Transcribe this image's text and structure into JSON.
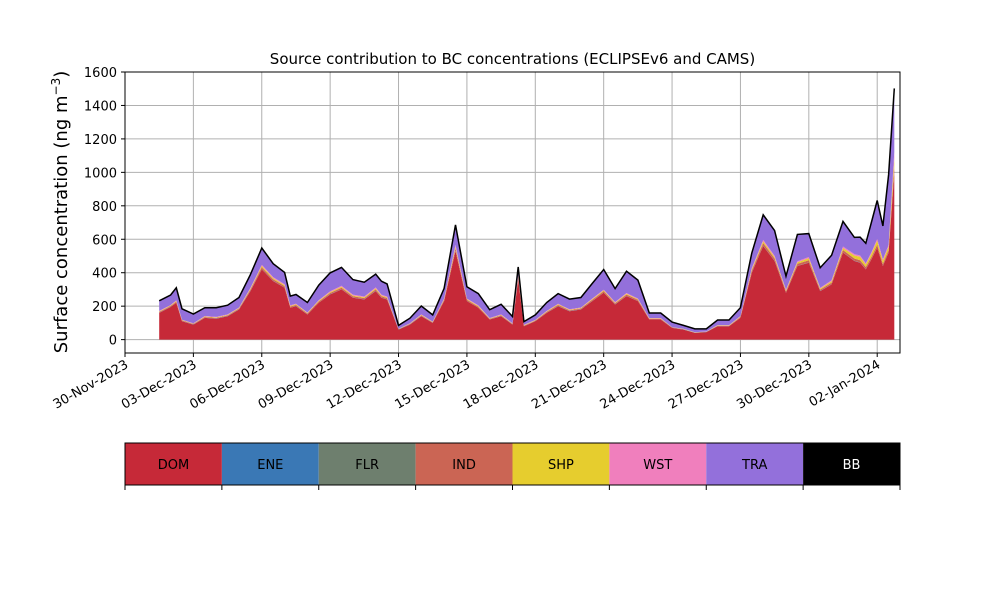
{
  "chart_data": {
    "type": "area",
    "stacked": true,
    "title": "Source contribution to BC concentrations (ECLIPSEv6 and CAMS)",
    "ylabel": "Surface concentration (ng m",
    "ylabel_exp": "−3",
    "ylabel_close": ")",
    "ylim": [
      -80,
      1600
    ],
    "xlim": [
      "2023-11-30",
      "2024-01-03"
    ],
    "grid": true,
    "y_ticks": [
      0,
      200,
      400,
      600,
      800,
      1000,
      1200,
      1400,
      1600
    ],
    "y_tick_labels": [
      "0",
      "200",
      "400",
      "600",
      "800",
      "1000",
      "1200",
      "1400",
      "1600"
    ],
    "x_ticks": [
      "2023-11-30",
      "2023-12-03",
      "2023-12-06",
      "2023-12-09",
      "2023-12-12",
      "2023-12-15",
      "2023-12-18",
      "2023-12-21",
      "2023-12-24",
      "2023-12-27",
      "2023-12-30",
      "2024-01-02"
    ],
    "x_tick_labels": [
      "30-Nov-2023",
      "03-Dec-2023",
      "06-Dec-2023",
      "09-Dec-2023",
      "12-Dec-2023",
      "15-Dec-2023",
      "18-Dec-2023",
      "21-Dec-2023",
      "24-Dec-2023",
      "27-Dec-2023",
      "30-Dec-2023",
      "02-Jan-2024"
    ],
    "x": [
      "2023-12-01 12:00",
      "2023-12-02 00:00",
      "2023-12-02 06:00",
      "2023-12-02 12:00",
      "2023-12-03 00:00",
      "2023-12-03 12:00",
      "2023-12-04 00:00",
      "2023-12-04 12:00",
      "2023-12-05 00:00",
      "2023-12-05 12:00",
      "2023-12-06 00:00",
      "2023-12-06 12:00",
      "2023-12-07 00:00",
      "2023-12-07 06:00",
      "2023-12-07 12:00",
      "2023-12-08 00:00",
      "2023-12-08 12:00",
      "2023-12-09 00:00",
      "2023-12-09 12:00",
      "2023-12-10 00:00",
      "2023-12-10 12:00",
      "2023-12-11 00:00",
      "2023-12-11 06:00",
      "2023-12-11 12:00",
      "2023-12-12 00:00",
      "2023-12-12 12:00",
      "2023-12-13 00:00",
      "2023-12-13 12:00",
      "2023-12-14 00:00",
      "2023-12-14 12:00",
      "2023-12-15 00:00",
      "2023-12-15 12:00",
      "2023-12-16 00:00",
      "2023-12-16 12:00",
      "2023-12-17 00:00",
      "2023-12-17 06:00",
      "2023-12-17 12:00",
      "2023-12-18 00:00",
      "2023-12-18 12:00",
      "2023-12-19 00:00",
      "2023-12-19 12:00",
      "2023-12-20 00:00",
      "2023-12-20 12:00",
      "2023-12-21 00:00",
      "2023-12-21 12:00",
      "2023-12-22 00:00",
      "2023-12-22 12:00",
      "2023-12-23 00:00",
      "2023-12-23 12:00",
      "2023-12-24 00:00",
      "2023-12-24 12:00",
      "2023-12-25 00:00",
      "2023-12-25 12:00",
      "2023-12-26 00:00",
      "2023-12-26 12:00",
      "2023-12-27 00:00",
      "2023-12-27 12:00",
      "2023-12-28 00:00",
      "2023-12-28 12:00",
      "2023-12-29 00:00",
      "2023-12-29 12:00",
      "2023-12-30 00:00",
      "2023-12-30 12:00",
      "2023-12-31 00:00",
      "2023-12-31 12:00",
      "2024-01-01 00:00",
      "2024-01-01 06:00",
      "2024-01-01 12:00",
      "2024-01-01 18:00",
      "2024-01-02 00:00",
      "2024-01-02 06:00",
      "2024-01-02 12:00",
      "2024-01-02 18:00"
    ],
    "series": [
      {
        "name": "DOM",
        "color": "#c62938",
        "values": [
          160,
          195,
          220,
          110,
          90,
          130,
          125,
          140,
          180,
          290,
          420,
          350,
          310,
          190,
          200,
          150,
          220,
          270,
          300,
          250,
          240,
          290,
          250,
          240,
          60,
          90,
          140,
          100,
          230,
          530,
          230,
          190,
          120,
          140,
          90,
          360,
          80,
          110,
          160,
          200,
          170,
          180,
          230,
          280,
          210,
          260,
          230,
          120,
          120,
          70,
          60,
          40,
          45,
          80,
          80,
          130,
          400,
          560,
          470,
          280,
          440,
          460,
          290,
          330,
          520,
          470,
          460,
          420,
          480,
          550,
          440,
          520,
          1000
        ]
      },
      {
        "name": "ENE",
        "color": "#3a78b5",
        "values": [
          1,
          1,
          1,
          1,
          1,
          1,
          1,
          1,
          1,
          1,
          1,
          1,
          1,
          1,
          1,
          1,
          1,
          1,
          1,
          1,
          1,
          1,
          1,
          1,
          1,
          1,
          1,
          1,
          1,
          1,
          1,
          1,
          1,
          1,
          1,
          1,
          1,
          1,
          1,
          1,
          1,
          1,
          1,
          1,
          1,
          1,
          1,
          1,
          1,
          1,
          1,
          1,
          1,
          1,
          1,
          1,
          1,
          1,
          1,
          1,
          1,
          1,
          1,
          1,
          1,
          1,
          1,
          1,
          1,
          1,
          1,
          1,
          2
        ]
      },
      {
        "name": "FLR",
        "color": "#6e7f6e",
        "values": [
          0,
          0,
          0,
          0,
          0,
          0,
          0,
          0,
          0,
          0,
          0,
          0,
          0,
          0,
          0,
          0,
          0,
          0,
          0,
          0,
          0,
          0,
          0,
          0,
          0,
          0,
          0,
          0,
          0,
          0,
          0,
          0,
          0,
          0,
          0,
          0,
          0,
          0,
          0,
          0,
          0,
          0,
          0,
          0,
          0,
          0,
          0,
          0,
          0,
          0,
          0,
          0,
          0,
          0,
          0,
          0,
          0,
          0,
          0,
          0,
          0,
          0,
          0,
          0,
          0,
          0,
          0,
          0,
          0,
          0,
          0,
          0,
          0
        ]
      },
      {
        "name": "IND",
        "color": "#cb6554",
        "values": [
          5,
          5,
          6,
          4,
          3,
          4,
          4,
          4,
          5,
          8,
          12,
          10,
          9,
          6,
          6,
          5,
          7,
          8,
          9,
          8,
          7,
          9,
          8,
          7,
          2,
          3,
          4,
          3,
          7,
          15,
          7,
          6,
          4,
          4,
          3,
          10,
          3,
          3,
          5,
          6,
          5,
          5,
          7,
          8,
          6,
          8,
          7,
          4,
          4,
          2,
          2,
          1,
          1,
          2,
          2,
          4,
          12,
          16,
          14,
          8,
          13,
          13,
          8,
          10,
          15,
          14,
          14,
          13,
          14,
          16,
          13,
          15,
          30
        ]
      },
      {
        "name": "SHP",
        "color": "#e6cd2e",
        "values": [
          3,
          3,
          4,
          2,
          2,
          3,
          3,
          3,
          3,
          5,
          8,
          7,
          6,
          4,
          4,
          3,
          4,
          5,
          6,
          5,
          5,
          6,
          5,
          5,
          1,
          2,
          3,
          2,
          4,
          10,
          4,
          4,
          2,
          3,
          2,
          7,
          2,
          2,
          3,
          4,
          3,
          3,
          4,
          5,
          4,
          5,
          4,
          2,
          2,
          1,
          1,
          1,
          1,
          2,
          2,
          3,
          8,
          10,
          9,
          5,
          8,
          12,
          6,
          8,
          12,
          18,
          20,
          15,
          20,
          25,
          18,
          20,
          50
        ]
      },
      {
        "name": "WST",
        "color": "#f07fbd",
        "values": [
          3,
          3,
          4,
          2,
          2,
          3,
          3,
          3,
          3,
          5,
          7,
          6,
          6,
          4,
          4,
          3,
          4,
          5,
          6,
          5,
          5,
          6,
          5,
          5,
          1,
          2,
          3,
          2,
          4,
          10,
          4,
          4,
          2,
          3,
          2,
          7,
          2,
          2,
          3,
          4,
          3,
          3,
          4,
          5,
          4,
          5,
          4,
          2,
          2,
          1,
          1,
          1,
          1,
          2,
          2,
          3,
          7,
          9,
          8,
          5,
          7,
          8,
          5,
          6,
          9,
          8,
          8,
          7,
          8,
          10,
          8,
          10,
          40
        ]
      },
      {
        "name": "TRA",
        "color": "#9370db",
        "values": [
          60,
          60,
          75,
          65,
          55,
          50,
          55,
          55,
          60,
          80,
          100,
          80,
          70,
          55,
          55,
          60,
          90,
          110,
          110,
          90,
          85,
          80,
          80,
          75,
          20,
          30,
          50,
          40,
          60,
          120,
          70,
          70,
          50,
          60,
          40,
          50,
          20,
          30,
          50,
          60,
          60,
          60,
          90,
          120,
          80,
          130,
          110,
          30,
          30,
          30,
          20,
          20,
          15,
          30,
          30,
          50,
          90,
          150,
          150,
          80,
          160,
          140,
          120,
          150,
          150,
          100,
          110,
          120,
          180,
          230,
          200,
          420,
          380
        ]
      },
      {
        "name": "BB",
        "color": "#000000",
        "values": [
          0,
          0,
          0,
          0,
          0,
          0,
          0,
          0,
          0,
          0,
          0,
          0,
          0,
          0,
          0,
          0,
          0,
          0,
          0,
          0,
          0,
          0,
          0,
          0,
          0,
          0,
          0,
          0,
          0,
          0,
          0,
          0,
          0,
          0,
          0,
          0,
          0,
          0,
          0,
          0,
          0,
          0,
          0,
          0,
          0,
          0,
          0,
          0,
          0,
          0,
          0,
          0,
          0,
          0,
          0,
          0,
          0,
          0,
          0,
          0,
          0,
          0,
          0,
          0,
          0,
          0,
          0,
          0,
          0,
          0,
          0,
          0,
          0
        ]
      }
    ],
    "legend": {
      "placement": "bottom",
      "entries": [
        {
          "label": "DOM",
          "color": "#c62938",
          "text_color": "#000000"
        },
        {
          "label": "ENE",
          "color": "#3a78b5",
          "text_color": "#000000"
        },
        {
          "label": "FLR",
          "color": "#6e7f6e",
          "text_color": "#000000"
        },
        {
          "label": "IND",
          "color": "#cb6554",
          "text_color": "#000000"
        },
        {
          "label": "SHP",
          "color": "#e6cd2e",
          "text_color": "#000000"
        },
        {
          "label": "WST",
          "color": "#f07fbd",
          "text_color": "#000000"
        },
        {
          "label": "TRA",
          "color": "#9370db",
          "text_color": "#000000"
        },
        {
          "label": "BB",
          "color": "#000000",
          "text_color": "#ffffff"
        }
      ]
    }
  }
}
